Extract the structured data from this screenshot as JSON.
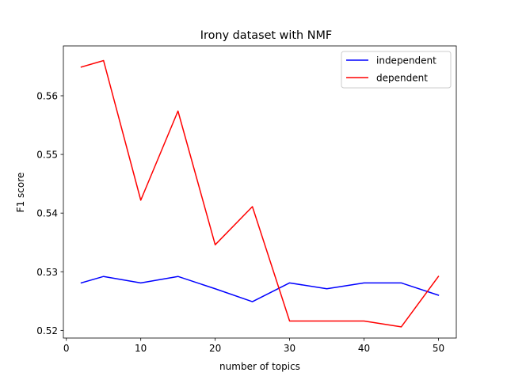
{
  "chart_data": {
    "type": "line",
    "title": "Irony dataset with NMF",
    "xlabel": "number of topics",
    "ylabel": "F1 score",
    "x": [
      2,
      5,
      10,
      15,
      20,
      25,
      30,
      35,
      40,
      45,
      50
    ],
    "xlim": [
      -0.4,
      52.4
    ],
    "ylim": [
      0.5187,
      0.5685
    ],
    "xticks": [
      0,
      10,
      20,
      30,
      40,
      50
    ],
    "yticks": [
      0.52,
      0.53,
      0.54,
      0.55,
      0.56
    ],
    "grid": false,
    "legend_position": "top-right",
    "series": [
      {
        "name": "independent",
        "color": "#0000ff",
        "values": [
          0.5281,
          0.5292,
          0.5281,
          0.5292,
          0.5271,
          0.5249,
          0.5281,
          0.5271,
          0.5281,
          0.5281,
          0.526
        ]
      },
      {
        "name": "dependent",
        "color": "#ff0000",
        "values": [
          0.5649,
          0.566,
          0.5422,
          0.5574,
          0.5346,
          0.5411,
          0.5216,
          0.5216,
          0.5216,
          0.5206,
          0.5292
        ]
      }
    ]
  }
}
